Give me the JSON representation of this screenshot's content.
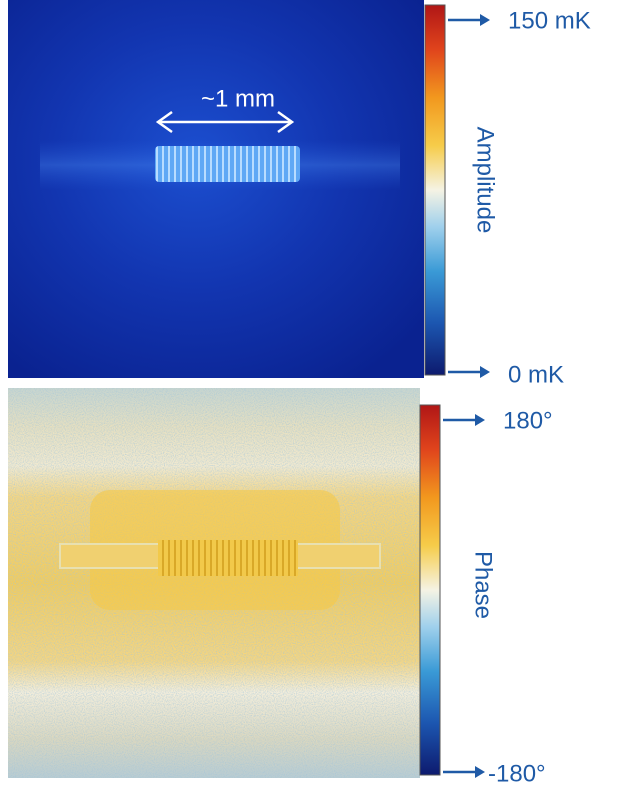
{
  "panels": [
    {
      "scale_label": "~1 mm",
      "top_label": "150 mK",
      "bottom_label": "0 mK",
      "axis_label": "Amplitude"
    },
    {
      "top_label": "180°",
      "bottom_label": "-180°",
      "axis_label": "Phase"
    }
  ]
}
